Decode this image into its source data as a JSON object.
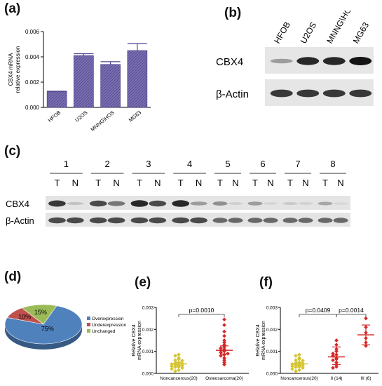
{
  "panels": {
    "a": "(a)",
    "b": "(b)",
    "c": "(c)",
    "d": "(d)",
    "e": "(e)",
    "f": "(f)"
  },
  "chart_data": [
    {
      "id": "a",
      "type": "bar",
      "ylabel": "CBX4 mRNA\nrelative expression",
      "categories": [
        "HFOB",
        "U2OS",
        "MNNG\\HOS",
        "MG63"
      ],
      "values": [
        0.00125,
        0.0041,
        0.0034,
        0.0045
      ],
      "errors": [
        3e-05,
        0.00015,
        0.00022,
        0.00055
      ],
      "ylim": [
        0,
        0.006
      ],
      "yticks": [
        "0.000",
        "0.002",
        "0.004",
        "0.006"
      ],
      "ytick_values": [
        0,
        0.002,
        0.004,
        0.006
      ],
      "bar_color": "#7b6fb0",
      "hatch_color": "#4e4690"
    },
    {
      "id": "d",
      "type": "pie",
      "slices": [
        {
          "label": "Overexpression",
          "value": 75,
          "text": "75%",
          "color": "#4f81bd"
        },
        {
          "label": "Underexpression",
          "value": 10,
          "text": "10%",
          "color": "#c0504d"
        },
        {
          "label": "Unchanged",
          "value": 15,
          "text": "15%",
          "color": "#9bbb59"
        }
      ]
    },
    {
      "id": "e",
      "type": "scatter",
      "ylabel": "Relative CBX4\nmRNA expression",
      "ylim": [
        0,
        0.003
      ],
      "yticks": [
        "0.000",
        "0.001",
        "0.002",
        "0.003"
      ],
      "ytick_values": [
        0,
        0.001,
        0.002,
        0.003
      ],
      "categories": [
        "Noncancerous(20)",
        "Osteosarcoma(20)"
      ],
      "groups": [
        {
          "color": "#d4c430",
          "mean": 0.00043,
          "sem_low": 0.00035,
          "sem_high": 0.00051,
          "values": [
            0.00085,
            0.0008,
            0.0007,
            0.00065,
            0.0006,
            0.00058,
            0.0005,
            0.00047,
            0.00045,
            0.00042,
            0.0004,
            0.00038,
            0.00035,
            0.00032,
            0.0003,
            0.00028,
            0.00025,
            0.0002,
            0.00015,
            0.0001
          ]
        },
        {
          "color": "#d62728",
          "mean": 0.00105,
          "sem_low": 0.00088,
          "sem_high": 0.00125,
          "values": [
            0.00245,
            0.0022,
            0.0019,
            0.0017,
            0.0015,
            0.0014,
            0.0013,
            0.0012,
            0.00115,
            0.0011,
            0.00105,
            0.001,
            0.00095,
            0.0009,
            0.00085,
            0.0008,
            0.0007,
            0.0006,
            0.0005,
            0.0004
          ]
        }
      ],
      "comparisons": [
        {
          "from": 0,
          "to": 1,
          "text": "p=0.0010"
        }
      ]
    },
    {
      "id": "f",
      "type": "scatter",
      "ylabel": "Relative CBX4\nmRNA expression",
      "ylim": [
        0,
        0.003
      ],
      "yticks": [
        "0.000",
        "0.001",
        "0.002",
        "0.003"
      ],
      "ytick_values": [
        0,
        0.001,
        0.002,
        0.003
      ],
      "categories": [
        "Noncancerous(20)",
        "II (14)",
        "III (6)"
      ],
      "groups": [
        {
          "color": "#d4c430",
          "mean": 0.00043,
          "sem_low": 0.00035,
          "sem_high": 0.00051,
          "values": [
            0.00085,
            0.0008,
            0.0007,
            0.00065,
            0.0006,
            0.00058,
            0.0005,
            0.00047,
            0.00045,
            0.00042,
            0.0004,
            0.00038,
            0.00035,
            0.00032,
            0.0003,
            0.00028,
            0.00025,
            0.0002,
            0.00015,
            0.0001
          ]
        },
        {
          "color": "#d62728",
          "mean": 0.00075,
          "sem_low": 0.0004,
          "sem_high": 0.0012,
          "values": [
            0.0015,
            0.0013,
            0.0011,
            0.001,
            0.0009,
            0.00085,
            0.0008,
            0.0007,
            0.00065,
            0.0006,
            0.0005,
            0.0004,
            0.0003,
            0.00025
          ]
        },
        {
          "color": "#d62728",
          "mean": 0.00175,
          "sem_low": 0.0013,
          "sem_high": 0.0022,
          "values": [
            0.0025,
            0.0021,
            0.00185,
            0.0016,
            0.0014,
            0.00125
          ]
        }
      ],
      "comparisons": [
        {
          "from": 0,
          "to": 1,
          "text": "p=0.0409"
        },
        {
          "from": 1,
          "to": 2,
          "text": "p=0.0014"
        }
      ]
    }
  ],
  "blot_b": {
    "lanes": [
      "HFOB",
      "U2OS",
      "MNNG\\HOS",
      "MG63"
    ],
    "rows": [
      {
        "label": "CBX4",
        "intensities": [
          0.55,
          0.95,
          0.95,
          1.0
        ]
      },
      {
        "label": "β-Actin",
        "intensities": [
          0.9,
          0.9,
          0.9,
          0.9
        ]
      }
    ]
  },
  "blot_c": {
    "pairs": [
      "1",
      "2",
      "3",
      "4",
      "5",
      "6",
      "7",
      "8"
    ],
    "lane_labels": [
      "T",
      "N"
    ],
    "rows": [
      {
        "label": "CBX4",
        "intensities": [
          0.9,
          0.35,
          0.85,
          0.7,
          0.95,
          0.85,
          0.95,
          0.55,
          0.6,
          0.25,
          0.55,
          0.1,
          0.3,
          0.2,
          0.5,
          0.05
        ]
      },
      {
        "label": "β-Actin",
        "intensities": [
          0.85,
          0.85,
          0.85,
          0.85,
          0.85,
          0.85,
          0.85,
          0.85,
          0.75,
          0.75,
          0.75,
          0.75,
          0.75,
          0.75,
          0.75,
          0.75
        ]
      }
    ]
  }
}
